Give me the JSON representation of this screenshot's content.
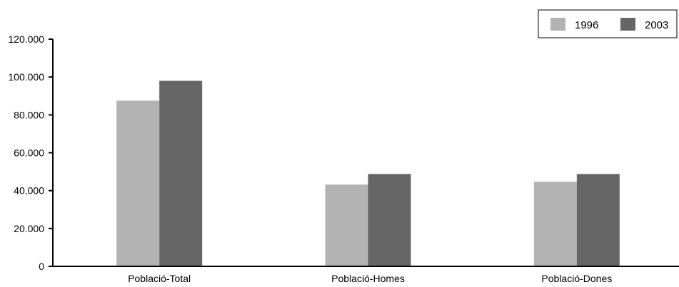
{
  "chart_data": {
    "type": "bar",
    "categories": [
      "Població-Total",
      "Població-Homes",
      "Població-Dones"
    ],
    "series": [
      {
        "name": "1996",
        "values": [
          87500,
          43200,
          44700
        ],
        "color": "#b3b3b3"
      },
      {
        "name": "2003",
        "values": [
          98000,
          48800,
          48800
        ],
        "color": "#666666"
      }
    ],
    "ylim": [
      0,
      120000
    ],
    "yticks": [
      0,
      20000,
      40000,
      60000,
      80000,
      100000,
      120000
    ],
    "ytick_labels": [
      "0",
      "20.000",
      "40.000",
      "60.000",
      "80.000",
      "100.000",
      "120.000"
    ],
    "title": "",
    "xlabel": "",
    "ylabel": "",
    "grid": false,
    "legend_position": "top-right"
  }
}
